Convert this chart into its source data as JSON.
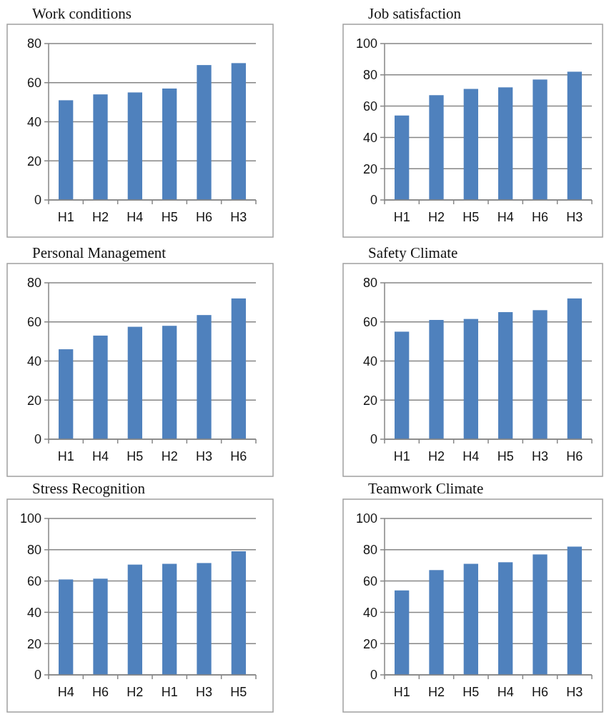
{
  "chart_data": [
    {
      "type": "bar",
      "title": "Work conditions",
      "categories": [
        "H1",
        "H2",
        "H4",
        "H5",
        "H6",
        "H3"
      ],
      "values": [
        51,
        54,
        55,
        57,
        69,
        70
      ],
      "color": "#4f81bd",
      "ylim": [
        0,
        80
      ],
      "yticks": [
        0,
        20,
        40,
        60,
        80
      ],
      "grid": "y"
    },
    {
      "type": "bar",
      "title": "Job satisfaction",
      "categories": [
        "H1",
        "H2",
        "H5",
        "H4",
        "H6",
        "H3"
      ],
      "values": [
        54,
        67,
        71,
        72,
        77,
        82
      ],
      "color": "#4f81bd",
      "ylim": [
        0,
        100
      ],
      "yticks": [
        0,
        20,
        40,
        60,
        80,
        100
      ],
      "grid": "y"
    },
    {
      "type": "bar",
      "title": "Personal  Management",
      "categories": [
        "H1",
        "H4",
        "H5",
        "H2",
        "H3",
        "H6"
      ],
      "values": [
        46,
        53,
        57.5,
        58,
        63.5,
        72
      ],
      "color": "#4f81bd",
      "ylim": [
        0,
        80
      ],
      "yticks": [
        0,
        20,
        40,
        60,
        80
      ],
      "grid": "y"
    },
    {
      "type": "bar",
      "title": "Safety Climate",
      "categories": [
        "H1",
        "H2",
        "H4",
        "H5",
        "H3",
        "H6"
      ],
      "values": [
        55,
        61,
        61.5,
        65,
        66,
        72
      ],
      "color": "#4f81bd",
      "ylim": [
        0,
        80
      ],
      "yticks": [
        0,
        20,
        40,
        60,
        80
      ],
      "grid": "y"
    },
    {
      "type": "bar",
      "title": "Stress  Recognition",
      "categories": [
        "H4",
        "H6",
        "H2",
        "H1",
        "H3",
        "H5"
      ],
      "values": [
        61,
        61.5,
        70.5,
        71,
        71.5,
        79
      ],
      "color": "#4f81bd",
      "ylim": [
        0,
        100
      ],
      "yticks": [
        0,
        20,
        40,
        60,
        80,
        100
      ],
      "grid": "y"
    },
    {
      "type": "bar",
      "title": "Teamwork   Climate",
      "categories": [
        "H1",
        "H2",
        "H5",
        "H4",
        "H6",
        "H3"
      ],
      "values": [
        54,
        67,
        71,
        72,
        77,
        82
      ],
      "color": "#4f81bd",
      "ylim": [
        0,
        100
      ],
      "yticks": [
        0,
        20,
        40,
        60,
        80,
        100
      ],
      "grid": "y"
    }
  ]
}
